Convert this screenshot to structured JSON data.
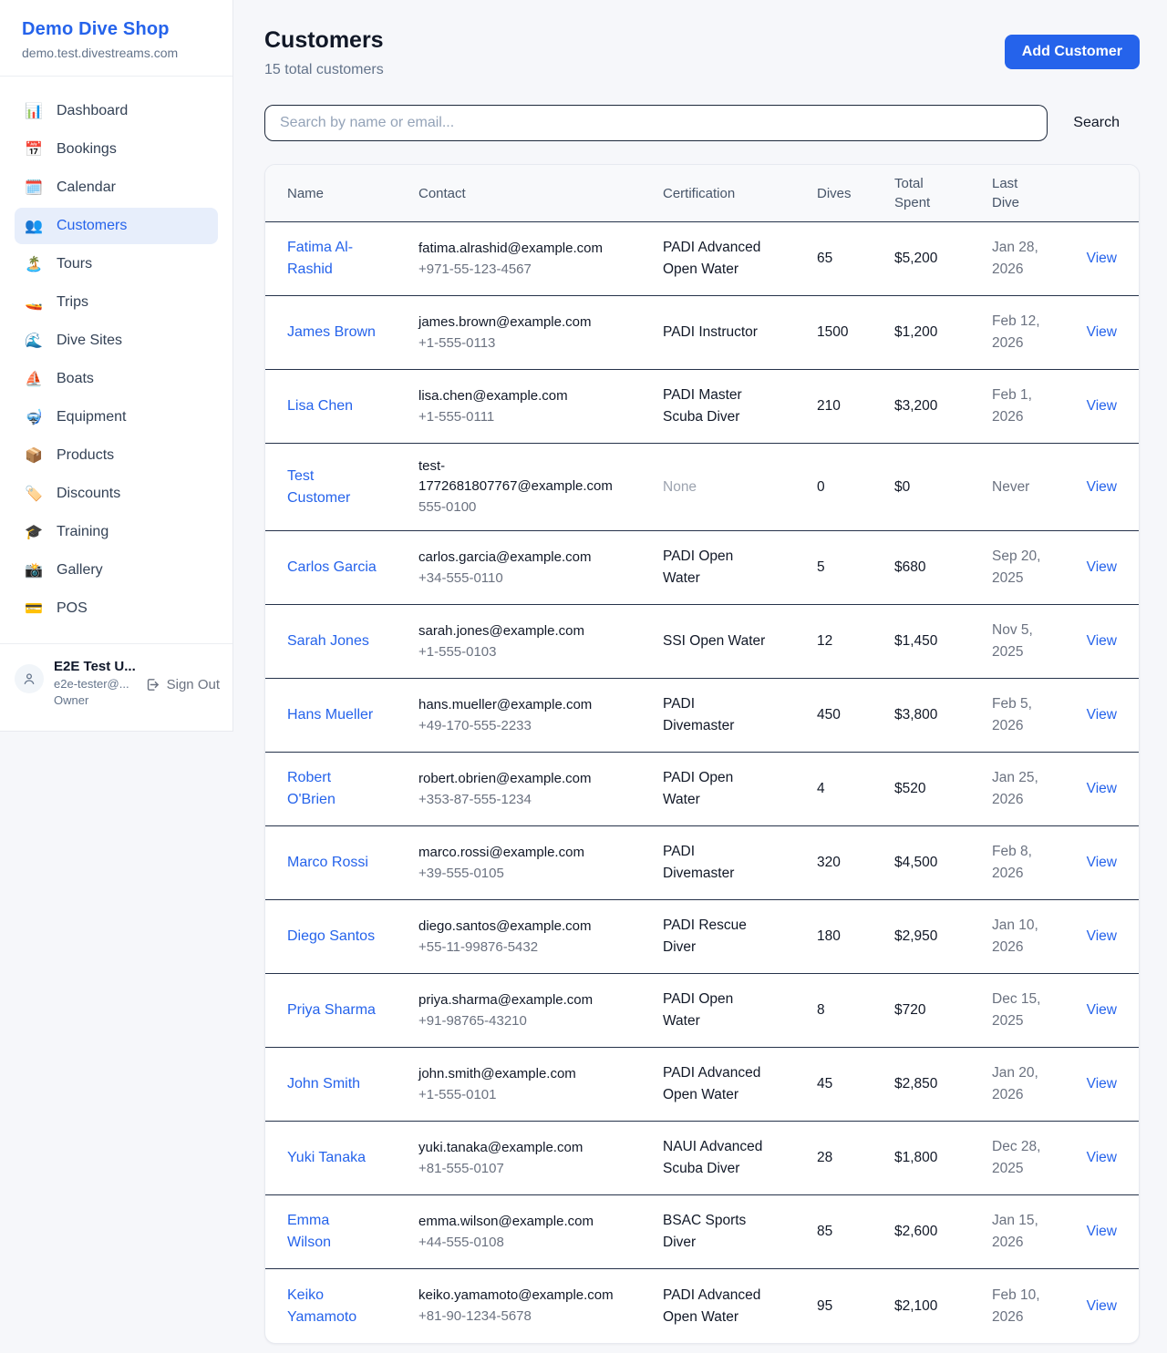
{
  "sidebar": {
    "brand": {
      "name": "Demo Dive Shop",
      "domain": "demo.test.divestreams.com"
    },
    "items": [
      {
        "icon": "📊",
        "icon_name": "dashboard-icon",
        "label": "Dashboard",
        "active": false
      },
      {
        "icon": "📅",
        "icon_name": "bookings-icon",
        "label": "Bookings",
        "active": false
      },
      {
        "icon": "🗓️",
        "icon_name": "calendar-icon",
        "label": "Calendar",
        "active": false
      },
      {
        "icon": "👥",
        "icon_name": "customers-icon",
        "label": "Customers",
        "active": true
      },
      {
        "icon": "🏝️",
        "icon_name": "tours-icon",
        "label": "Tours",
        "active": false
      },
      {
        "icon": "🚤",
        "icon_name": "trips-icon",
        "label": "Trips",
        "active": false
      },
      {
        "icon": "🌊",
        "icon_name": "dive-sites-icon",
        "label": "Dive Sites",
        "active": false
      },
      {
        "icon": "⛵",
        "icon_name": "boats-icon",
        "label": "Boats",
        "active": false
      },
      {
        "icon": "🤿",
        "icon_name": "equipment-icon",
        "label": "Equipment",
        "active": false
      },
      {
        "icon": "📦",
        "icon_name": "products-icon",
        "label": "Products",
        "active": false
      },
      {
        "icon": "🏷️",
        "icon_name": "discounts-icon",
        "label": "Discounts",
        "active": false
      },
      {
        "icon": "🎓",
        "icon_name": "training-icon",
        "label": "Training",
        "active": false
      },
      {
        "icon": "📸",
        "icon_name": "gallery-icon",
        "label": "Gallery",
        "active": false
      },
      {
        "icon": "💳",
        "icon_name": "pos-icon",
        "label": "POS",
        "active": false
      }
    ],
    "user": {
      "name": "E2E Test U...",
      "email": "e2e-tester@...",
      "role": "Owner",
      "sign_out_label": "Sign Out"
    }
  },
  "header": {
    "title": "Customers",
    "subtitle": "15 total customers",
    "add_button_label": "Add Customer"
  },
  "search": {
    "placeholder": "Search by name or email...",
    "button_label": "Search"
  },
  "table": {
    "columns": [
      "Name",
      "Contact",
      "Certification",
      "Dives",
      "Total Spent",
      "Last Dive"
    ],
    "view_label": "View",
    "rows": [
      {
        "name": "Fatima Al-Rashid",
        "email": "fatima.alrashid@example.com",
        "phone": "+971-55-123-4567",
        "certification": "PADI Advanced Open Water",
        "dives": "65",
        "total_spent": "$5,200",
        "last_dive": "Jan 28, 2026"
      },
      {
        "name": "James Brown",
        "email": "james.brown@example.com",
        "phone": "+1-555-0113",
        "certification": "PADI Instructor",
        "dives": "1500",
        "total_spent": "$1,200",
        "last_dive": "Feb 12, 2026"
      },
      {
        "name": "Lisa Chen",
        "email": "lisa.chen@example.com",
        "phone": "+1-555-0111",
        "certification": "PADI Master Scuba Diver",
        "dives": "210",
        "total_spent": "$3,200",
        "last_dive": "Feb 1, 2026"
      },
      {
        "name": "Test Customer",
        "email": "test-1772681807767@example.com",
        "phone": "555-0100",
        "certification": "None",
        "dives": "0",
        "total_spent": "$0",
        "last_dive": "Never"
      },
      {
        "name": "Carlos Garcia",
        "email": "carlos.garcia@example.com",
        "phone": "+34-555-0110",
        "certification": "PADI Open Water",
        "dives": "5",
        "total_spent": "$680",
        "last_dive": "Sep 20, 2025"
      },
      {
        "name": "Sarah Jones",
        "email": "sarah.jones@example.com",
        "phone": "+1-555-0103",
        "certification": "SSI Open Water",
        "dives": "12",
        "total_spent": "$1,450",
        "last_dive": "Nov 5, 2025"
      },
      {
        "name": "Hans Mueller",
        "email": "hans.mueller@example.com",
        "phone": "+49-170-555-2233",
        "certification": "PADI Divemaster",
        "dives": "450",
        "total_spent": "$3,800",
        "last_dive": "Feb 5, 2026"
      },
      {
        "name": "Robert O'Brien",
        "email": "robert.obrien@example.com",
        "phone": "+353-87-555-1234",
        "certification": "PADI Open Water",
        "dives": "4",
        "total_spent": "$520",
        "last_dive": "Jan 25, 2026"
      },
      {
        "name": "Marco Rossi",
        "email": "marco.rossi@example.com",
        "phone": "+39-555-0105",
        "certification": "PADI Divemaster",
        "dives": "320",
        "total_spent": "$4,500",
        "last_dive": "Feb 8, 2026"
      },
      {
        "name": "Diego Santos",
        "email": "diego.santos@example.com",
        "phone": "+55-11-99876-5432",
        "certification": "PADI Rescue Diver",
        "dives": "180",
        "total_spent": "$2,950",
        "last_dive": "Jan 10, 2026"
      },
      {
        "name": "Priya Sharma",
        "email": "priya.sharma@example.com",
        "phone": "+91-98765-43210",
        "certification": "PADI Open Water",
        "dives": "8",
        "total_spent": "$720",
        "last_dive": "Dec 15, 2025"
      },
      {
        "name": "John Smith",
        "email": "john.smith@example.com",
        "phone": "+1-555-0101",
        "certification": "PADI Advanced Open Water",
        "dives": "45",
        "total_spent": "$2,850",
        "last_dive": "Jan 20, 2026"
      },
      {
        "name": "Yuki Tanaka",
        "email": "yuki.tanaka@example.com",
        "phone": "+81-555-0107",
        "certification": "NAUI Advanced Scuba Diver",
        "dives": "28",
        "total_spent": "$1,800",
        "last_dive": "Dec 28, 2025"
      },
      {
        "name": "Emma Wilson",
        "email": "emma.wilson@example.com",
        "phone": "+44-555-0108",
        "certification": "BSAC Sports Diver",
        "dives": "85",
        "total_spent": "$2,600",
        "last_dive": "Jan 15, 2026"
      },
      {
        "name": "Keiko Yamamoto",
        "email": "keiko.yamamoto@example.com",
        "phone": "+81-90-1234-5678",
        "certification": "PADI Advanced Open Water",
        "dives": "95",
        "total_spent": "$2,100",
        "last_dive": "Feb 10, 2026"
      }
    ]
  },
  "colors": {
    "accent_blue": "#2563eb",
    "active_nav_bg": "#e7eefb",
    "page_bg": "#f6f7fa",
    "table_header_bg": "#f8f9fb",
    "row_border": "#25324a",
    "muted_text": "#9ca3af",
    "secondary_text": "#64748b"
  }
}
